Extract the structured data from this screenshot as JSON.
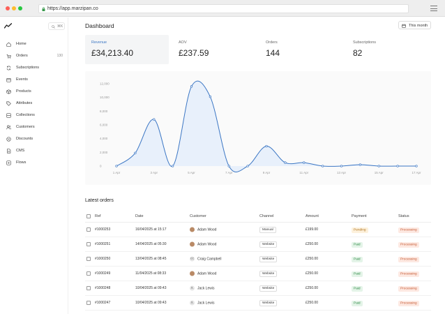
{
  "browser": {
    "url": "https://app.marzipan.co"
  },
  "sidebar": {
    "search_shortcut": "⌘K",
    "items": [
      {
        "label": "Home",
        "icon": "home-icon"
      },
      {
        "label": "Orders",
        "count": "130",
        "icon": "orders-icon"
      },
      {
        "label": "Subscriptions",
        "icon": "subscriptions-icon"
      },
      {
        "label": "Events",
        "icon": "events-icon"
      },
      {
        "label": "Products",
        "icon": "products-icon"
      },
      {
        "label": "Attributes",
        "icon": "attributes-icon"
      },
      {
        "label": "Collections",
        "icon": "collections-icon"
      },
      {
        "label": "Customers",
        "icon": "customers-icon"
      },
      {
        "label": "Discounts",
        "icon": "discounts-icon"
      },
      {
        "label": "CMS",
        "icon": "cms-icon"
      },
      {
        "label": "Flows",
        "icon": "flows-icon"
      }
    ]
  },
  "header": {
    "title": "Dashboard",
    "period_button": "This month"
  },
  "stats": [
    {
      "label": "Revenue",
      "value": "£34,213.40"
    },
    {
      "label": "AOV",
      "value": "£237.59"
    },
    {
      "label": "Orders",
      "value": "144"
    },
    {
      "label": "Subscriptions",
      "value": "82"
    }
  ],
  "colors": {
    "accent": "#3b76c4",
    "chart_fill": "#e8f0fb"
  },
  "chart_data": {
    "type": "line",
    "x": [
      "1 Apr",
      "2 Apr",
      "3 Apr",
      "4 Apr",
      "5 Apr",
      "6 Apr",
      "7 Apr",
      "8 Apr",
      "9 Apr",
      "10 Apr",
      "11 Apr",
      "12 Apr",
      "13 Apr",
      "14 Apr",
      "15 Apr",
      "16 Apr",
      "17 Apr"
    ],
    "x_tick_labels": [
      "1 Apr",
      "3 Apr",
      "5 Apr",
      "7 Apr",
      "9 Apr",
      "11 Apr",
      "13 Apr",
      "15 Apr",
      "17 Apr"
    ],
    "y_tick_labels": [
      "12,000",
      "10,000",
      "8,000",
      "6,000",
      "4,000",
      "2,000",
      "0"
    ],
    "series": [
      {
        "values": [
          0,
          1900,
          6800,
          0,
          11600,
          10100,
          0,
          0,
          2900,
          500,
          500,
          0,
          0,
          200,
          0,
          0,
          0
        ]
      }
    ],
    "ylim": [
      0,
      12000
    ],
    "grid": false,
    "area_fill": true
  },
  "orders": {
    "title": "Latest orders",
    "columns": [
      "Ref",
      "Date",
      "Customer",
      "Channel",
      "Amount",
      "Payment",
      "Status"
    ],
    "rows": [
      {
        "ref": "#1000253",
        "date": "16/04/2025 at 15:17",
        "customer": "Adam Wood",
        "avatar": "photo",
        "initials": "",
        "channel": "Manual",
        "amount": "£199.00",
        "payment": "Pending",
        "status": "Processing"
      },
      {
        "ref": "#1000251",
        "date": "14/04/2025 at 05:30",
        "customer": "Adam Wood",
        "avatar": "photo",
        "initials": "",
        "channel": "Website",
        "amount": "£250.00",
        "payment": "Paid",
        "status": "Processing"
      },
      {
        "ref": "#1000250",
        "date": "13/04/2025 at 08:45",
        "customer": "Craig Campbell",
        "avatar": "initials",
        "initials": "CC",
        "channel": "Website",
        "amount": "£250.00",
        "payment": "Paid",
        "status": "Processing"
      },
      {
        "ref": "#1000249",
        "date": "11/04/2025 at 08:33",
        "customer": "Adam Wood",
        "avatar": "photo",
        "initials": "",
        "channel": "Website",
        "amount": "£250.00",
        "payment": "Paid",
        "status": "Processing"
      },
      {
        "ref": "#1000248",
        "date": "10/04/2025 at 09:43",
        "customer": "Jack Lewis",
        "avatar": "initials",
        "initials": "JL",
        "channel": "Website",
        "amount": "£250.00",
        "payment": "Paid",
        "status": "Processing"
      },
      {
        "ref": "#1000247",
        "date": "10/04/2025 at 09:43",
        "customer": "Jack Lewis",
        "avatar": "initials",
        "initials": "JL",
        "channel": "Website",
        "amount": "£250.00",
        "payment": "Paid",
        "status": "Processing"
      }
    ]
  }
}
